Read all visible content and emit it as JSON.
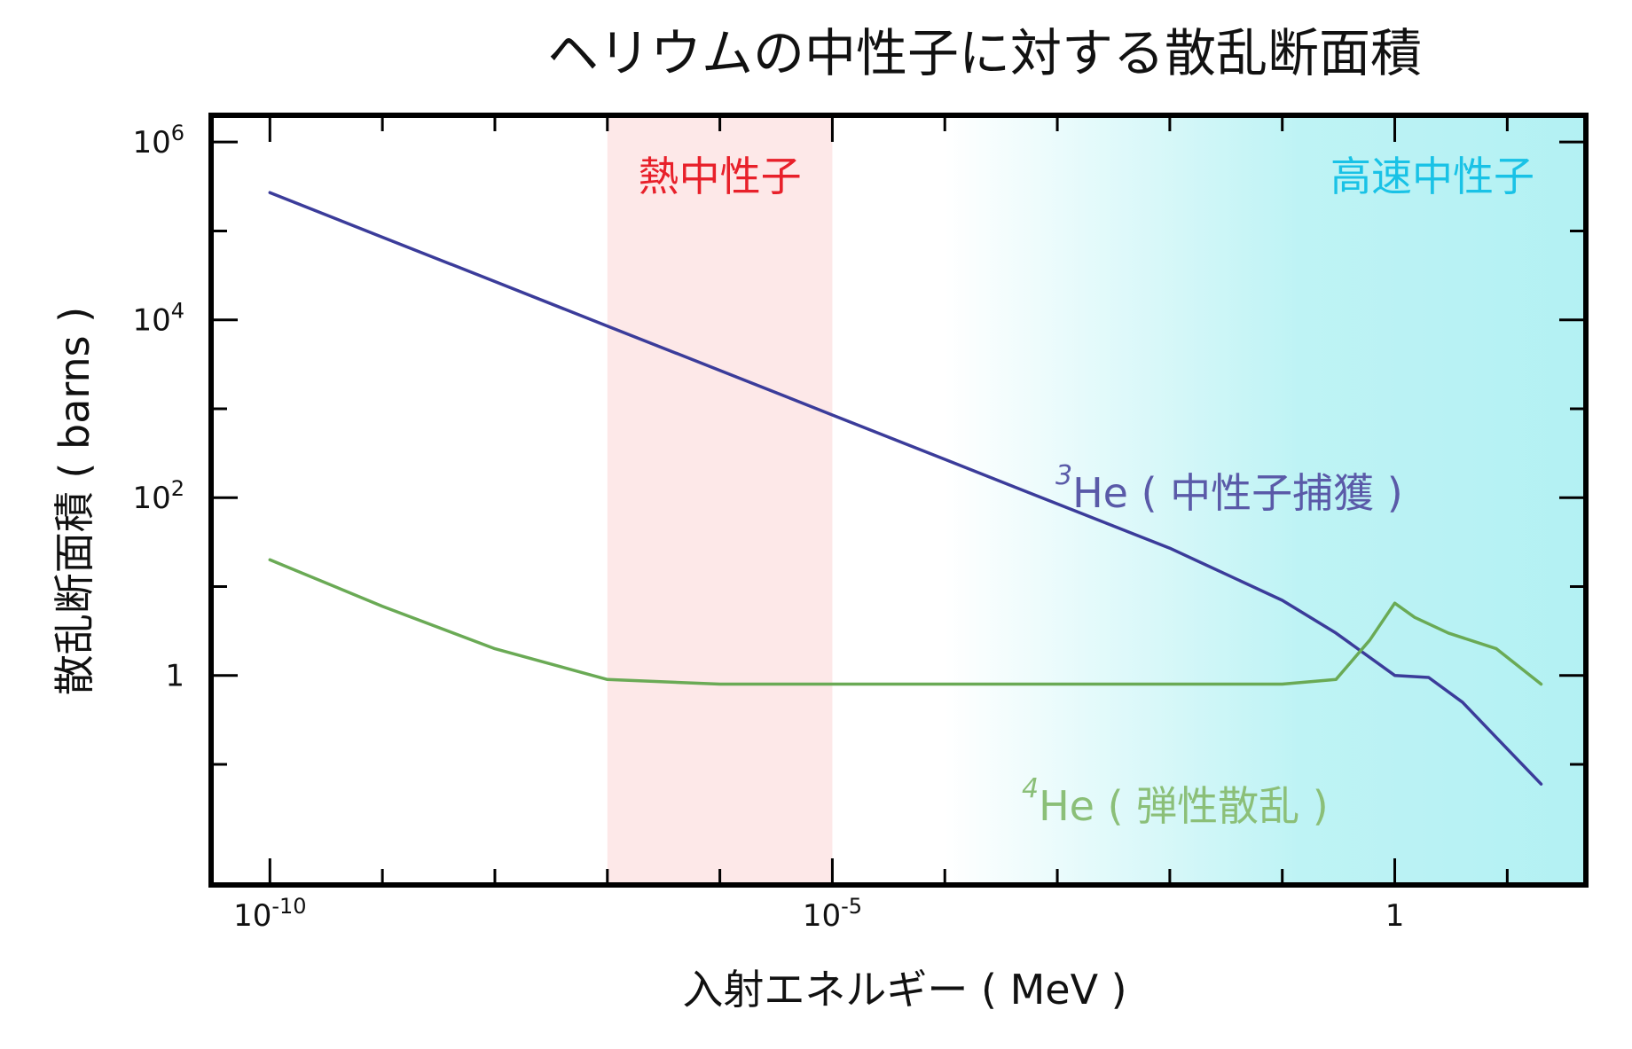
{
  "chart_data": {
    "type": "line",
    "title": "ヘリウムの中性子に対する散乱断面積",
    "xlabel": "入射エネルギー ( MeV )",
    "ylabel": "散乱断面積 ( barns )",
    "x_scale": "log",
    "y_scale": "log",
    "xlim": [
      3e-11,
      50
    ],
    "ylim": [
      0.0044,
      2000000.0
    ],
    "x_ticks": [
      {
        "value": 1e-10,
        "base": "10",
        "exp": "-10"
      },
      {
        "value": 1e-05,
        "base": "10",
        "exp": "-5"
      },
      {
        "value": 1,
        "base": "1",
        "exp": ""
      }
    ],
    "y_ticks": [
      {
        "value": 1,
        "base": "1",
        "exp": ""
      },
      {
        "value": 100,
        "base": "10",
        "exp": "2"
      },
      {
        "value": 10000,
        "base": "10",
        "exp": "4"
      },
      {
        "value": 1000000,
        "base": "10",
        "exp": "6"
      }
    ],
    "regions": [
      {
        "label": "熱中性子",
        "x_range": [
          1e-07,
          1e-05
        ],
        "color": "#fde8e8",
        "label_color": "#e8202a"
      },
      {
        "label": "高速中性子",
        "x_range": [
          0.0001,
          50
        ],
        "color": "#b3f1f3",
        "label_color": "#19c2e6"
      }
    ],
    "series": [
      {
        "name_sup": "3",
        "name": "He ( 中性子捕獲 )",
        "color": "#3b3c9a",
        "label_color": "#5a5aa8",
        "x": [
          1e-10,
          1e-09,
          1e-08,
          1e-07,
          1e-06,
          1e-05,
          0.0001,
          0.001,
          0.01,
          0.1,
          0.3,
          1,
          2,
          4,
          8,
          20
        ],
        "y": [
          270000,
          85000,
          27000,
          8500,
          2700,
          850,
          270,
          85,
          27,
          7,
          3,
          1.0,
          0.95,
          0.5,
          0.2,
          0.06
        ]
      },
      {
        "name_sup": "4",
        "name": "He ( 弾性散乱 )",
        "color": "#6aaa55",
        "label_color": "#8bbf78",
        "x": [
          1e-10,
          1e-09,
          1e-08,
          1e-07,
          1e-06,
          1e-05,
          0.0001,
          0.01,
          0.1,
          0.3,
          0.6,
          1,
          1.5,
          3,
          8,
          20
        ],
        "y": [
          20,
          6,
          2,
          0.9,
          0.8,
          0.8,
          0.8,
          0.8,
          0.8,
          0.9,
          2.5,
          6.5,
          4.5,
          3,
          2,
          0.8
        ]
      }
    ]
  }
}
